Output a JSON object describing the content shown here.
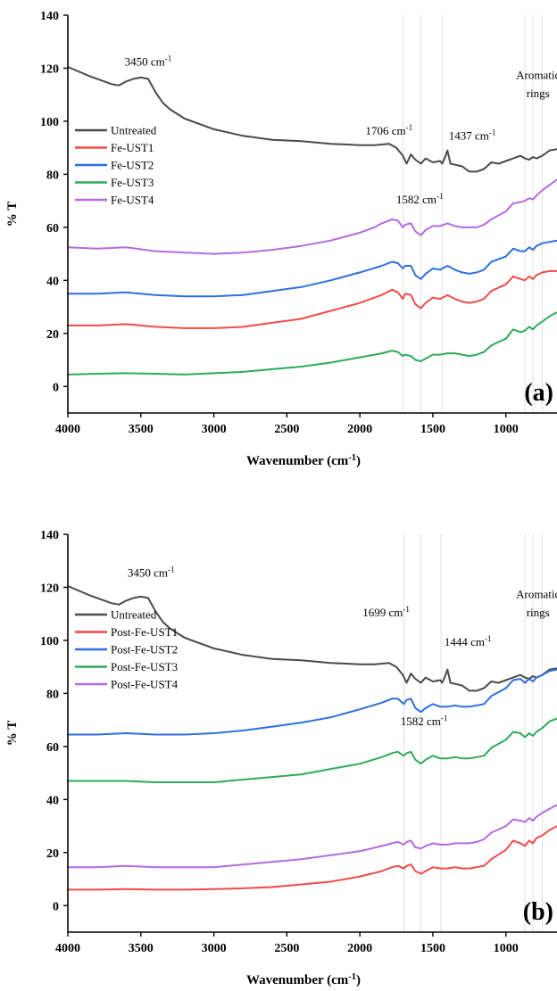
{
  "chart_data": [
    {
      "type": "line",
      "panel_label": "(a)",
      "xlabel_main": "Wavenumber (cm",
      "xlabel_sup": "-1",
      "xlabel_end": ")",
      "ylabel": "% T",
      "xlim": [
        4000,
        650
      ],
      "ylim": [
        -10,
        140
      ],
      "x_ticks": [
        4000,
        3500,
        3000,
        2500,
        2000,
        1500,
        1000
      ],
      "y_ticks": [
        0,
        20,
        40,
        60,
        80,
        100,
        120,
        140
      ],
      "ref_lines": [
        1706,
        1582,
        1437,
        870,
        815,
        750
      ],
      "annotations": [
        {
          "text": "3450 cm",
          "sup": "-1",
          "x": 3450,
          "y": 121
        },
        {
          "text": "1706 cm",
          "sup": "-1",
          "x": 1800,
          "y": 95
        },
        {
          "text": "1437 cm",
          "sup": "-1",
          "x": 1230,
          "y": 93
        },
        {
          "text": "1582 cm",
          "sup": "-1",
          "x": 1590,
          "y": 69
        },
        {
          "text": "Aromatic",
          "sup": "",
          "x": 780,
          "y": 116
        },
        {
          "text": "rings",
          "sup": "",
          "x": 780,
          "y": 109
        }
      ],
      "series": [
        {
          "name": "Untreated",
          "color": "#4a4a4a",
          "x": [
            4000,
            3850,
            3700,
            3650,
            3600,
            3550,
            3500,
            3450,
            3400,
            3350,
            3300,
            3200,
            3000,
            2800,
            2600,
            2400,
            2200,
            2000,
            1900,
            1800,
            1750,
            1706,
            1680,
            1650,
            1620,
            1582,
            1550,
            1500,
            1450,
            1437,
            1420,
            1400,
            1380,
            1300,
            1250,
            1200,
            1150,
            1100,
            1050,
            1000,
            950,
            900,
            870,
            840,
            815,
            790,
            750,
            700,
            650
          ],
          "y": [
            120.5,
            117,
            114,
            113.5,
            115,
            116,
            116.5,
            116,
            111,
            107,
            104.5,
            101,
            97,
            94.5,
            93,
            92.5,
            91.5,
            91,
            91,
            91.5,
            90,
            87,
            84,
            87.5,
            85.5,
            84,
            86,
            84.5,
            85,
            84,
            86,
            89,
            84,
            83,
            81,
            81,
            82,
            84.5,
            84,
            85,
            86,
            87,
            86,
            85.5,
            86.5,
            86,
            87,
            89,
            89.5
          ]
        },
        {
          "name": "Fe-UST1",
          "color": "#ef4b4b",
          "x": [
            4000,
            3800,
            3600,
            3400,
            3200,
            3000,
            2800,
            2600,
            2400,
            2200,
            2000,
            1850,
            1780,
            1740,
            1706,
            1690,
            1650,
            1620,
            1582,
            1550,
            1500,
            1450,
            1400,
            1350,
            1300,
            1250,
            1200,
            1150,
            1100,
            1000,
            950,
            900,
            870,
            840,
            815,
            790,
            750,
            700,
            650
          ],
          "y": [
            23,
            23,
            23.5,
            22.5,
            22,
            22,
            22.5,
            24,
            25.5,
            28.5,
            31.5,
            34.5,
            36.5,
            35.5,
            33,
            35,
            34.5,
            31,
            29.5,
            31.5,
            33.5,
            33,
            34.5,
            33,
            32,
            31.5,
            32,
            33,
            36,
            38.5,
            41.5,
            40.5,
            40,
            41.5,
            40.5,
            42,
            43,
            43.5,
            43.5
          ]
        },
        {
          "name": "Fe-UST2",
          "color": "#2f6fe0",
          "x": [
            4000,
            3800,
            3600,
            3400,
            3200,
            3000,
            2800,
            2600,
            2400,
            2200,
            2000,
            1850,
            1780,
            1740,
            1706,
            1690,
            1650,
            1620,
            1582,
            1550,
            1500,
            1450,
            1400,
            1350,
            1300,
            1250,
            1200,
            1150,
            1100,
            1000,
            950,
            900,
            870,
            840,
            815,
            790,
            750,
            700,
            650
          ],
          "y": [
            35,
            35,
            35.5,
            34.5,
            34,
            34,
            34.5,
            36,
            37.5,
            40,
            43,
            45.5,
            47,
            46.5,
            44.5,
            45.5,
            45.5,
            42,
            40.5,
            42.5,
            44.5,
            44,
            45.5,
            44,
            43,
            42.5,
            43,
            44,
            47,
            49,
            52,
            51,
            51,
            52.5,
            51.5,
            53,
            54,
            54.5,
            55
          ]
        },
        {
          "name": "Fe-UST3",
          "color": "#2eab5a",
          "x": [
            4000,
            3800,
            3600,
            3400,
            3200,
            3000,
            2800,
            2600,
            2400,
            2200,
            2000,
            1850,
            1780,
            1740,
            1706,
            1690,
            1650,
            1620,
            1582,
            1550,
            1500,
            1450,
            1400,
            1350,
            1300,
            1250,
            1200,
            1150,
            1100,
            1000,
            950,
            900,
            870,
            840,
            815,
            790,
            750,
            700,
            650
          ],
          "y": [
            4.5,
            4.8,
            5,
            4.8,
            4.5,
            5,
            5.5,
            6.5,
            7.5,
            9,
            11,
            12.5,
            13.5,
            13,
            11.5,
            12,
            11.5,
            10,
            9.5,
            10.5,
            12,
            12,
            12.5,
            12.5,
            12,
            11.5,
            12,
            13,
            15.5,
            18,
            21.5,
            20.5,
            21,
            22.5,
            21.5,
            23,
            24.5,
            26.5,
            28
          ]
        },
        {
          "name": "Fe-UST4",
          "color": "#b36ce0",
          "x": [
            4000,
            3800,
            3600,
            3400,
            3200,
            3000,
            2800,
            2600,
            2400,
            2200,
            2000,
            1900,
            1850,
            1780,
            1740,
            1706,
            1690,
            1650,
            1620,
            1582,
            1550,
            1500,
            1450,
            1400,
            1350,
            1300,
            1250,
            1200,
            1150,
            1100,
            1000,
            950,
            900,
            870,
            840,
            815,
            790,
            750,
            700,
            650
          ],
          "y": [
            52.5,
            52,
            52.5,
            51,
            50.5,
            50,
            50.5,
            51.5,
            53,
            55,
            58,
            60,
            61.5,
            63,
            62.5,
            60,
            61,
            61.5,
            58.5,
            57,
            59,
            60.5,
            60.5,
            61.5,
            60.5,
            60,
            60,
            60,
            61,
            63,
            66,
            69,
            69.5,
            70,
            71,
            70.5,
            72,
            74,
            76,
            78
          ]
        }
      ]
    },
    {
      "type": "line",
      "panel_label": "(b)",
      "xlabel_main": "Wavenumber (cm",
      "xlabel_sup": "-1",
      "xlabel_end": ")",
      "ylabel": "% T",
      "xlim": [
        4000,
        650
      ],
      "ylim": [
        -10,
        140
      ],
      "x_ticks": [
        4000,
        3500,
        3000,
        2500,
        2000,
        1500,
        1000
      ],
      "y_ticks": [
        0,
        20,
        40,
        60,
        80,
        100,
        120,
        140
      ],
      "ref_lines": [
        1699,
        1582,
        1444,
        870,
        815,
        750
      ],
      "annotations": [
        {
          "text": "3450 cm",
          "sup": "-1",
          "x": 3430,
          "y": 124
        },
        {
          "text": "1699 cm",
          "sup": "-1",
          "x": 1820,
          "y": 109
        },
        {
          "text": "1444 cm",
          "sup": "-1",
          "x": 1260,
          "y": 98
        },
        {
          "text": "1582 cm",
          "sup": "-1",
          "x": 1560,
          "y": 68
        },
        {
          "text": "Aromatic",
          "sup": "",
          "x": 780,
          "y": 116
        },
        {
          "text": "rings",
          "sup": "",
          "x": 780,
          "y": 109
        }
      ],
      "series": [
        {
          "name": "Untreated",
          "color": "#4a4a4a",
          "x": [
            4000,
            3850,
            3700,
            3650,
            3600,
            3550,
            3500,
            3450,
            3400,
            3350,
            3300,
            3200,
            3000,
            2800,
            2600,
            2400,
            2200,
            2000,
            1900,
            1800,
            1750,
            1706,
            1680,
            1650,
            1620,
            1582,
            1550,
            1500,
            1450,
            1437,
            1420,
            1400,
            1380,
            1300,
            1250,
            1200,
            1150,
            1100,
            1050,
            1000,
            950,
            900,
            870,
            840,
            815,
            790,
            750,
            700,
            650
          ],
          "y": [
            120.5,
            117,
            114,
            113.5,
            115,
            116,
            116.5,
            116,
            111,
            107,
            104.5,
            101,
            97,
            94.5,
            93,
            92.5,
            91.5,
            91,
            91,
            91.5,
            90,
            87,
            84,
            87.5,
            85.5,
            84,
            86,
            84.5,
            85,
            84,
            86,
            89,
            84,
            83,
            81,
            81,
            82,
            84.5,
            84,
            85,
            86,
            87,
            86,
            85.5,
            86.5,
            86,
            87,
            89,
            89.5
          ]
        },
        {
          "name": "Post-Fe-UST1",
          "color": "#ef4b4b",
          "x": [
            4000,
            3800,
            3600,
            3400,
            3200,
            3000,
            2800,
            2600,
            2400,
            2200,
            2000,
            1850,
            1780,
            1740,
            1699,
            1680,
            1650,
            1620,
            1582,
            1550,
            1500,
            1450,
            1400,
            1350,
            1300,
            1250,
            1200,
            1150,
            1100,
            1000,
            950,
            900,
            870,
            840,
            815,
            790,
            750,
            700,
            650
          ],
          "y": [
            6,
            6,
            6.2,
            6,
            6,
            6.2,
            6.5,
            7,
            8,
            9,
            11,
            13,
            14.5,
            15,
            14,
            15,
            15.5,
            13,
            12,
            13,
            14.5,
            14,
            14,
            14.5,
            14,
            14,
            14.5,
            15,
            17.5,
            21,
            24.5,
            23.5,
            22.5,
            24.5,
            23.5,
            25.5,
            26.5,
            28.5,
            30
          ]
        },
        {
          "name": "Post-Fe-UST2",
          "color": "#2f6fe0",
          "x": [
            4000,
            3800,
            3600,
            3400,
            3200,
            3000,
            2800,
            2600,
            2400,
            2200,
            2000,
            1850,
            1780,
            1740,
            1699,
            1680,
            1650,
            1620,
            1582,
            1550,
            1500,
            1450,
            1400,
            1350,
            1300,
            1250,
            1200,
            1150,
            1100,
            1000,
            950,
            900,
            870,
            840,
            815,
            790,
            750,
            700,
            650
          ],
          "y": [
            64.5,
            64.5,
            65,
            64.5,
            64.5,
            65,
            66,
            67.5,
            69,
            71,
            74,
            76.5,
            78,
            78,
            76,
            77.5,
            78,
            74.5,
            73,
            74.5,
            76,
            75,
            75,
            75.5,
            75,
            75,
            75.5,
            76,
            79,
            82,
            85,
            85.5,
            84,
            85.5,
            84.5,
            86,
            87,
            88.5,
            89
          ]
        },
        {
          "name": "Post-Fe-UST3",
          "color": "#2eab5a",
          "x": [
            4000,
            3800,
            3600,
            3400,
            3200,
            3000,
            2800,
            2600,
            2400,
            2200,
            2000,
            1850,
            1780,
            1740,
            1699,
            1680,
            1650,
            1620,
            1582,
            1550,
            1500,
            1450,
            1400,
            1350,
            1300,
            1250,
            1200,
            1150,
            1100,
            1000,
            950,
            900,
            870,
            840,
            815,
            790,
            750,
            700,
            650
          ],
          "y": [
            47,
            47,
            47,
            46.5,
            46.5,
            46.5,
            47.5,
            48.5,
            49.5,
            51.5,
            53.5,
            56,
            57.5,
            58,
            56.5,
            57.5,
            58,
            55,
            53.5,
            55,
            56.5,
            55.5,
            55.5,
            56,
            55.5,
            55.5,
            56,
            56.5,
            59.5,
            62.5,
            65.5,
            65,
            63.5,
            65,
            64,
            65.5,
            67,
            69.5,
            70.5
          ]
        },
        {
          "name": "Post-Fe-UST4",
          "color": "#b36ce0",
          "x": [
            4000,
            3800,
            3600,
            3400,
            3200,
            3000,
            2800,
            2600,
            2400,
            2200,
            2000,
            1850,
            1780,
            1740,
            1699,
            1680,
            1650,
            1620,
            1582,
            1550,
            1500,
            1450,
            1400,
            1350,
            1300,
            1250,
            1200,
            1150,
            1100,
            1000,
            950,
            900,
            870,
            840,
            815,
            790,
            750,
            700,
            650
          ],
          "y": [
            14.5,
            14.5,
            15,
            14.5,
            14.5,
            14.5,
            15.5,
            16.5,
            17.5,
            19,
            20.5,
            22.5,
            23.5,
            24,
            23,
            24,
            24.5,
            22,
            21.5,
            22.5,
            23.5,
            23,
            23,
            23.5,
            23.5,
            23.5,
            24,
            25,
            27.5,
            30,
            32.5,
            32,
            31.5,
            33,
            32,
            33.5,
            35,
            36.5,
            38
          ]
        }
      ]
    }
  ]
}
